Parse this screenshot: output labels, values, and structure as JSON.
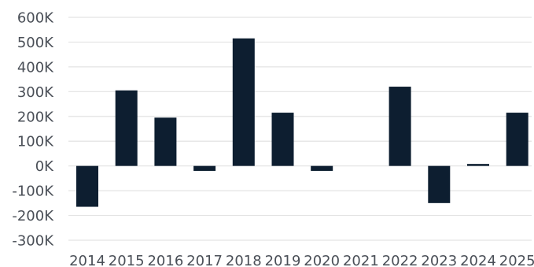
{
  "chart_data": {
    "type": "bar",
    "categories": [
      "2014",
      "2015",
      "2016",
      "2017",
      "2018",
      "2019",
      "2020",
      "2021",
      "2022",
      "2023",
      "2024",
      "2025"
    ],
    "values": [
      -165000,
      305000,
      195000,
      -20000,
      515000,
      215000,
      -20000,
      0,
      320000,
      -150000,
      8000,
      215000
    ],
    "ylim": [
      -300000,
      600000
    ],
    "yticks": [
      600000,
      500000,
      400000,
      300000,
      200000,
      100000,
      0,
      -100000,
      -200000,
      -300000
    ],
    "ytick_labels": [
      "600K",
      "500K",
      "400K",
      "300K",
      "200K",
      "100K",
      "0K",
      "-100K",
      "-200K",
      "-300K"
    ],
    "grid": true,
    "bar_color": "#0d1e30",
    "grid_color": "#e3e3e3"
  }
}
